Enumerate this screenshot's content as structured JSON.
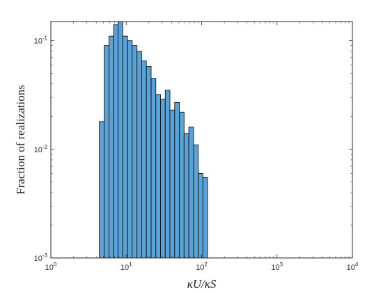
{
  "chart_data": {
    "type": "bar",
    "title": "",
    "xlabel": "κU/κS",
    "ylabel": "Fraction of realizations",
    "x_scale": "log",
    "y_scale": "log",
    "xlim": [
      1,
      10000
    ],
    "ylim": [
      0.001,
      0.15
    ],
    "grid": false,
    "legend": "none",
    "bar_color": "#5BA3D6",
    "edge_color": "#000000",
    "x_ticks": [
      {
        "value": 1,
        "base": "10",
        "exp": "0"
      },
      {
        "value": 10,
        "base": "10",
        "exp": "1"
      },
      {
        "value": 100,
        "base": "10",
        "exp": "2"
      },
      {
        "value": 1000,
        "base": "10",
        "exp": "3"
      },
      {
        "value": 10000,
        "base": "10",
        "exp": "4"
      }
    ],
    "y_ticks": [
      {
        "value": 0.001,
        "base": "10",
        "exp": "-3"
      },
      {
        "value": 0.01,
        "base": "10",
        "exp": "-2"
      },
      {
        "value": 0.1,
        "base": "10",
        "exp": "-1"
      }
    ],
    "bins": [
      {
        "x0": 4.4,
        "x1": 5.1,
        "value": 0.018
      },
      {
        "x0": 5.1,
        "x1": 5.9,
        "value": 0.09
      },
      {
        "x0": 5.9,
        "x1": 6.8,
        "value": 0.11
      },
      {
        "x0": 6.8,
        "x1": 7.8,
        "value": 0.14
      },
      {
        "x0": 7.8,
        "x1": 9.0,
        "value": 0.15
      },
      {
        "x0": 9.0,
        "x1": 10.4,
        "value": 0.11
      },
      {
        "x0": 10.4,
        "x1": 12.0,
        "value": 0.1
      },
      {
        "x0": 12.0,
        "x1": 13.9,
        "value": 0.09
      },
      {
        "x0": 13.9,
        "x1": 16.0,
        "value": 0.08
      },
      {
        "x0": 16.0,
        "x1": 18.5,
        "value": 0.065
      },
      {
        "x0": 18.5,
        "x1": 21.4,
        "value": 0.058
      },
      {
        "x0": 21.4,
        "x1": 24.7,
        "value": 0.045
      },
      {
        "x0": 24.7,
        "x1": 28.5,
        "value": 0.032
      },
      {
        "x0": 28.5,
        "x1": 32.9,
        "value": 0.029
      },
      {
        "x0": 32.9,
        "x1": 38.0,
        "value": 0.035
      },
      {
        "x0": 38.0,
        "x1": 43.9,
        "value": 0.023
      },
      {
        "x0": 43.9,
        "x1": 50.7,
        "value": 0.027
      },
      {
        "x0": 50.7,
        "x1": 58.5,
        "value": 0.022
      },
      {
        "x0": 58.5,
        "x1": 67.6,
        "value": 0.014
      },
      {
        "x0": 67.6,
        "x1": 78.1,
        "value": 0.016
      },
      {
        "x0": 78.1,
        "x1": 90.2,
        "value": 0.011
      },
      {
        "x0": 90.2,
        "x1": 104,
        "value": 0.006
      },
      {
        "x0": 104,
        "x1": 120,
        "value": 0.0055
      },
      {
        "x0": 120,
        "x1": 139,
        "value": 0.0
      },
      {
        "x0": 139,
        "x1": 161,
        "value": 0.0
      },
      {
        "x0": 161,
        "x1": 186,
        "value": 0.0
      },
      {
        "x0": 186,
        "x1": 215,
        "value": 0.0
      },
      {
        "x0": 215,
        "x1": 248,
        "value": 0.0
      },
      {
        "x0": 248,
        "x1": 286,
        "value": 0.0
      }
    ]
  }
}
